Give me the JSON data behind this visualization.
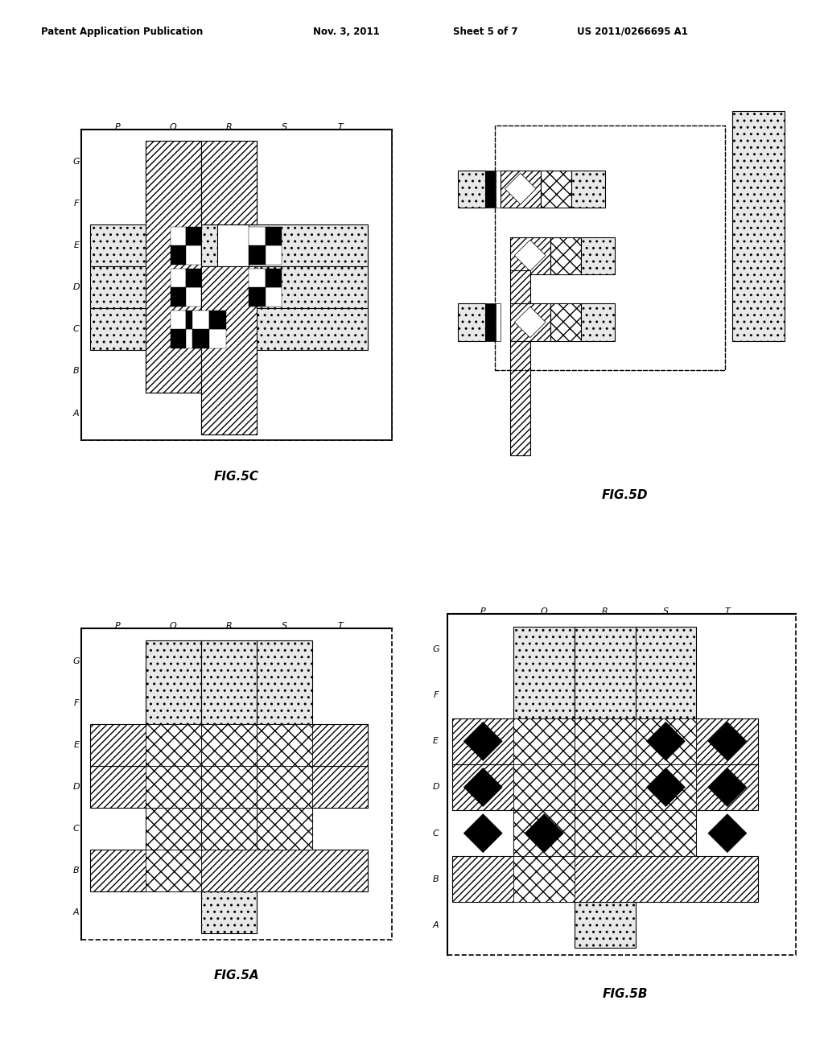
{
  "header_left": "Patent Application Publication",
  "header_mid1": "Nov. 3, 2011",
  "header_mid2": "Sheet 5 of 7",
  "header_right": "US 2011/0266695 A1",
  "col_labels": [
    "P",
    "Q",
    "R",
    "S",
    "T"
  ],
  "row_labels": [
    "A",
    "B",
    "C",
    "D",
    "E",
    "F",
    "G"
  ],
  "fig_labels": [
    "FIG.5C",
    "FIG.5D",
    "FIG.5A",
    "FIG.5B"
  ],
  "background": "#ffffff"
}
